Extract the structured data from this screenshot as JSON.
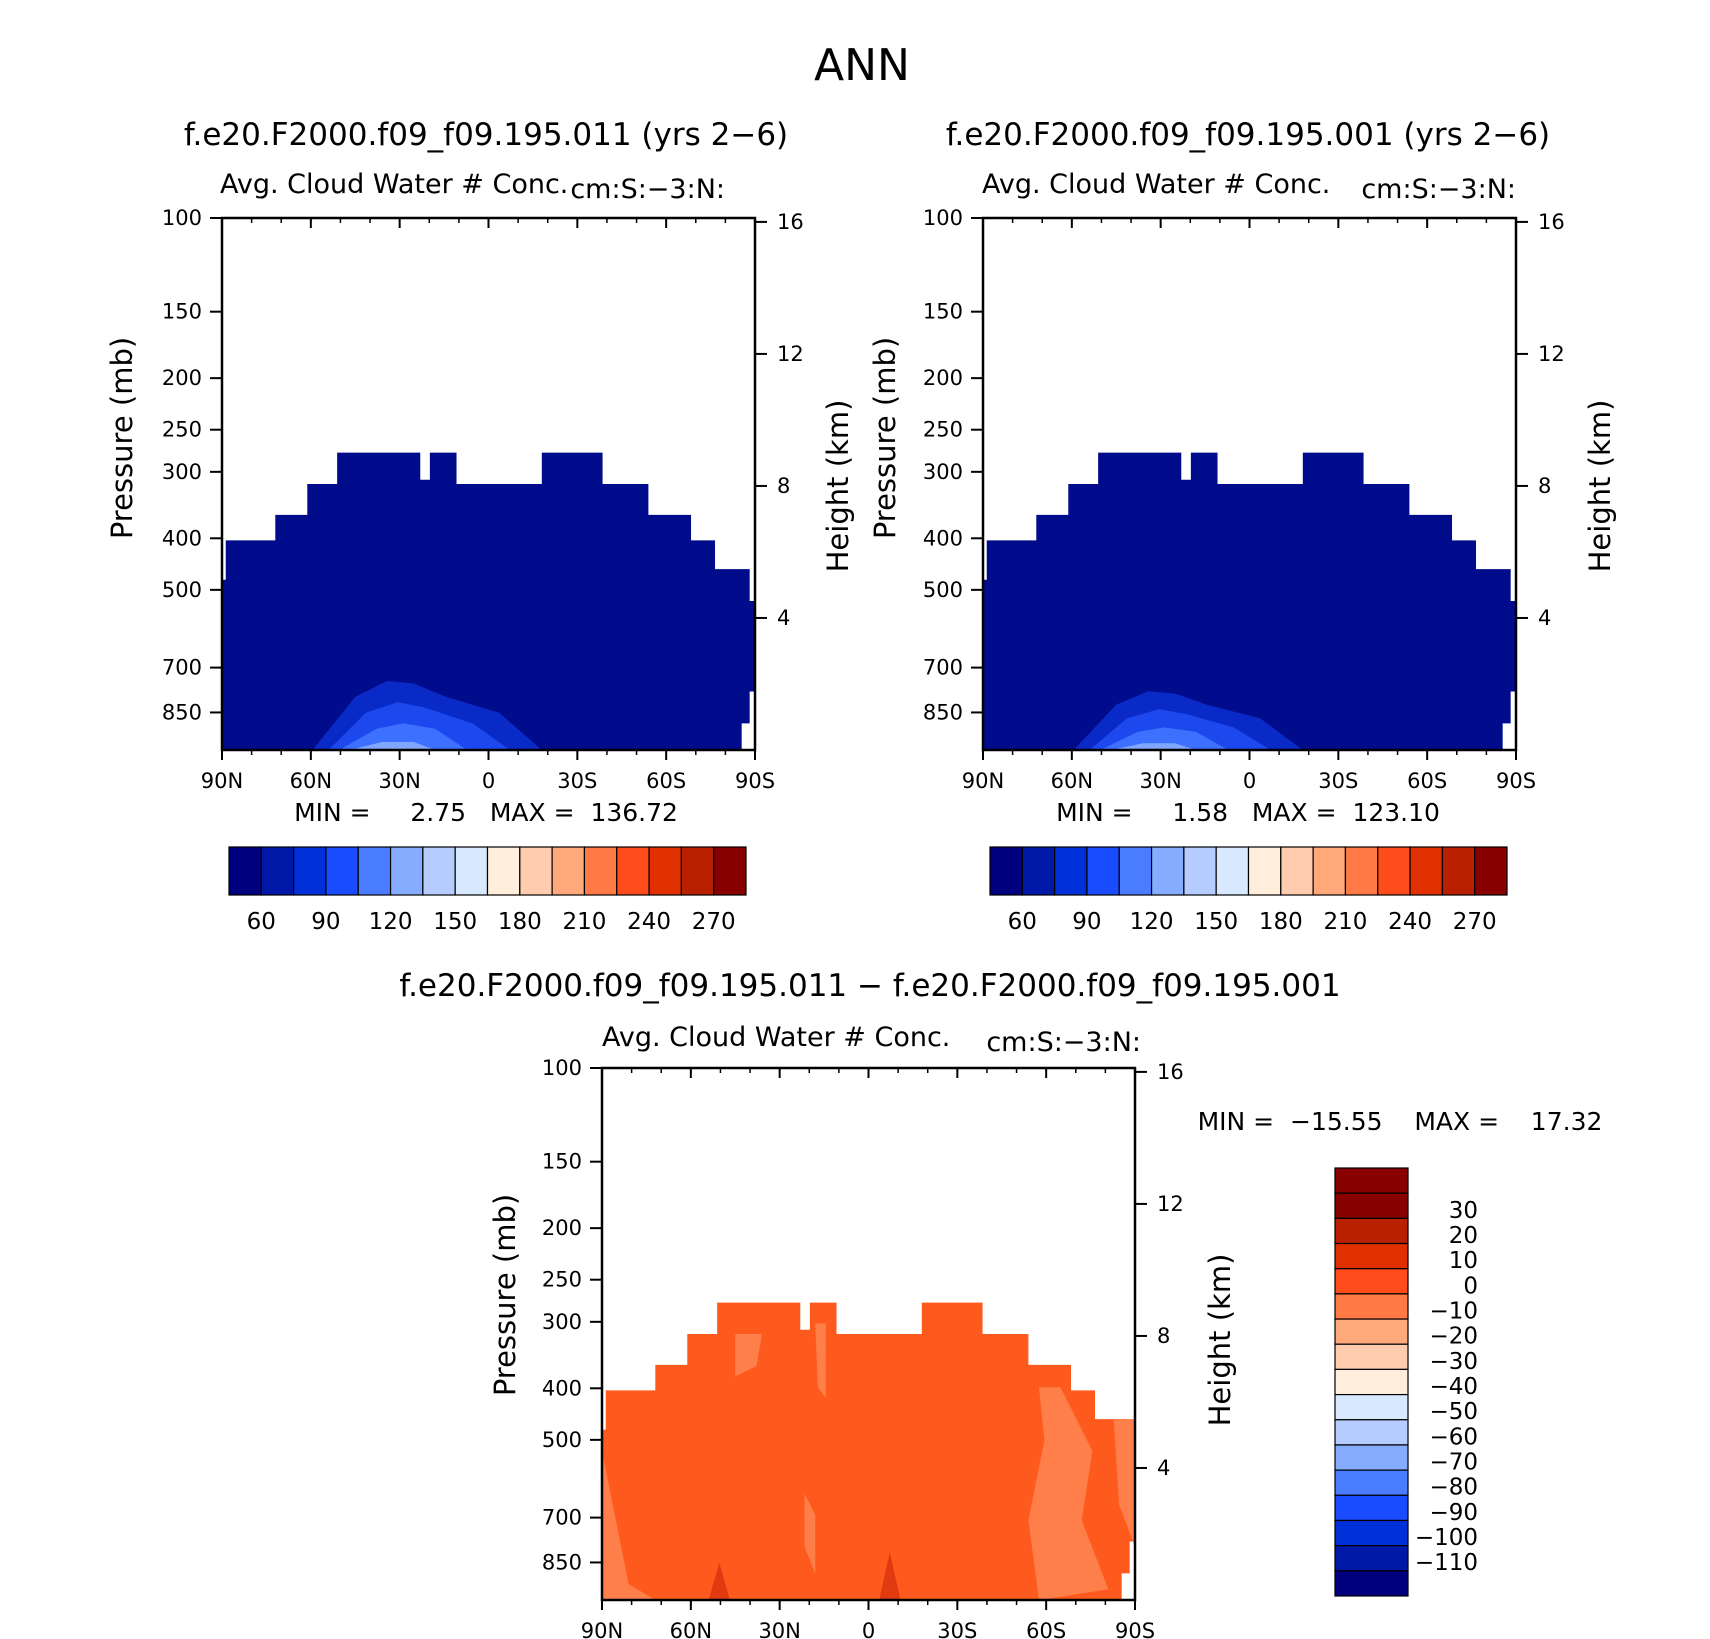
{
  "page_title": "ANN",
  "panels": [
    {
      "id": "top-left",
      "title": "f.e20.F2000.f09_f09.195.011 (yrs 2−6)",
      "subtitle": "Avg. Cloud Water # Conc.",
      "units": "cm:S:−3:N:",
      "ylabel_left": "Pressure (mb)",
      "ylabel_right": "Height (km)",
      "stats": "MIN =     2.75   MAX =  136.72"
    },
    {
      "id": "top-right",
      "title": "f.e20.F2000.f09_f09.195.001 (yrs 2−6)",
      "subtitle": "Avg. Cloud Water # Conc.",
      "units": "cm:S:−3:N:",
      "ylabel_left": "Pressure (mb)",
      "ylabel_right": "Height (km)",
      "stats": "MIN =     1.58   MAX =  123.10"
    },
    {
      "id": "bottom",
      "title": "f.e20.F2000.f09_f09.195.011 − f.e20.F2000.f09_f09.195.001",
      "subtitle": "Avg. Cloud Water # Conc.",
      "units": "cm:S:−3:N:",
      "ylabel_left": "Pressure (mb)",
      "ylabel_right": "Height (km)",
      "stats": "MIN =  −15.55    MAX =    17.32"
    }
  ],
  "chart_data": [
    {
      "type": "heatmap",
      "panel": "top-left",
      "x_ticks": [
        "90N",
        "60N",
        "30N",
        "0",
        "30S",
        "60S",
        "90S"
      ],
      "y_ticks_pressure": [
        100,
        150,
        200,
        250,
        300,
        400,
        500,
        700,
        850
      ],
      "y_ticks_height_km": [
        16,
        12,
        8,
        4
      ],
      "y_scale": "log-pressure",
      "colorbar_ticks": [
        60,
        90,
        120,
        150,
        180,
        210,
        240,
        270
      ],
      "colorbar_colors": [
        "#00007f",
        "#0018a8",
        "#0030d8",
        "#1a4cff",
        "#4a7cff",
        "#86acff",
        "#b6ccff",
        "#d8e8ff",
        "#ffeedc",
        "#ffccb0",
        "#ffa87a",
        "#ff7a44",
        "#ff4c1a",
        "#e03000",
        "#b82000",
        "#880000"
      ],
      "field_color": "#000c8c"
    },
    {
      "type": "heatmap",
      "panel": "top-right",
      "x_ticks": [
        "90N",
        "60N",
        "30N",
        "0",
        "30S",
        "60S",
        "90S"
      ],
      "y_ticks_pressure": [
        100,
        150,
        200,
        250,
        300,
        400,
        500,
        700,
        850
      ],
      "y_ticks_height_km": [
        16,
        12,
        8,
        4
      ],
      "y_scale": "log-pressure",
      "colorbar_ticks": [
        60,
        90,
        120,
        150,
        180,
        210,
        240,
        270
      ],
      "colorbar_colors": [
        "#00007f",
        "#0018a8",
        "#0030d8",
        "#1a4cff",
        "#4a7cff",
        "#86acff",
        "#b6ccff",
        "#d8e8ff",
        "#ffeedc",
        "#ffccb0",
        "#ffa87a",
        "#ff7a44",
        "#ff4c1a",
        "#e03000",
        "#b82000",
        "#880000"
      ],
      "field_color": "#000c8c"
    },
    {
      "type": "heatmap",
      "panel": "bottom",
      "x_ticks": [
        "90N",
        "60N",
        "30N",
        "0",
        "30S",
        "60S",
        "90S"
      ],
      "y_ticks_pressure": [
        100,
        150,
        200,
        250,
        300,
        400,
        500,
        700,
        850
      ],
      "y_ticks_height_km": [
        16,
        12,
        8,
        4
      ],
      "y_scale": "log-pressure",
      "colorbar_ticks": [
        30,
        20,
        10,
        0,
        -10,
        -20,
        -30,
        -40,
        -50,
        -60,
        -70,
        -80,
        -90,
        -100,
        -110
      ],
      "colorbar_colors": [
        "#880000",
        "#b82000",
        "#e03000",
        "#ff4c1a",
        "#ff7a44",
        "#ffa87a",
        "#ffccb0",
        "#ffeedc",
        "#d8e8ff",
        "#b6ccff",
        "#86acff",
        "#4a7cff",
        "#1a4cff",
        "#0030d8",
        "#0018a8",
        "#00007f"
      ],
      "field_color": "#ff5a1e",
      "field_color_light": "#ff7f4a"
    }
  ]
}
